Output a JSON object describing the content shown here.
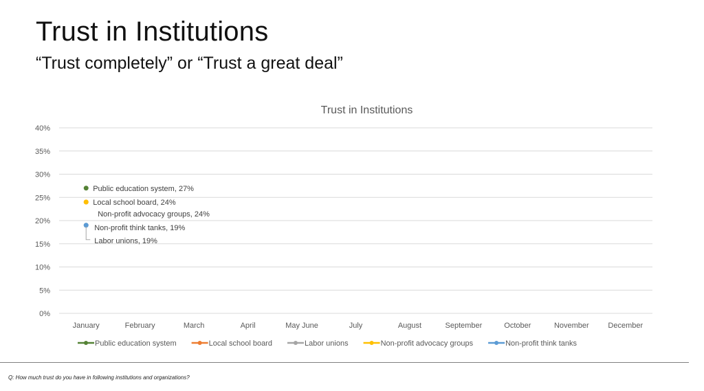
{
  "slide": {
    "title": "Trust in Institutions",
    "subtitle": "“Trust completely” or “Trust a great deal”",
    "footnote": "Q: How much trust do you have in following institutions and organizations?"
  },
  "chart_data": {
    "type": "line",
    "title": "Trust in Institutions",
    "xlabel": "",
    "ylabel": "",
    "categories": [
      "January",
      "February",
      "March",
      "April",
      "May June",
      "July",
      "August",
      "September",
      "October",
      "November",
      "December"
    ],
    "ylim": [
      0,
      0.4
    ],
    "yticks": [
      "0%",
      "5%",
      "10%",
      "15%",
      "20%",
      "25%",
      "30%",
      "35%",
      "40%"
    ],
    "grid": true,
    "legend_position": "bottom",
    "series": [
      {
        "name": "Public education system",
        "color": "#548235",
        "values": [
          0.27,
          null,
          null,
          null,
          null,
          null,
          null,
          null,
          null,
          null,
          null
        ],
        "label": "Public education system, 27%"
      },
      {
        "name": "Local school board",
        "color": "#ed7d31",
        "values": [
          0.24,
          null,
          null,
          null,
          null,
          null,
          null,
          null,
          null,
          null,
          null
        ],
        "label": "Local school board, 24%"
      },
      {
        "name": "Labor unions",
        "color": "#a5a5a5",
        "values": [
          0.19,
          null,
          null,
          null,
          null,
          null,
          null,
          null,
          null,
          null,
          null
        ],
        "label": "Labor unions, 19%"
      },
      {
        "name": "Non-profit advocacy groups",
        "color": "#ffc000",
        "values": [
          0.24,
          null,
          null,
          null,
          null,
          null,
          null,
          null,
          null,
          null,
          null
        ],
        "label": "Non-profit advocacy groups, 24%"
      },
      {
        "name": "Non-profit think tanks",
        "color": "#5b9bd5",
        "values": [
          0.19,
          null,
          null,
          null,
          null,
          null,
          null,
          null,
          null,
          null,
          null
        ],
        "label": "Non-profit think tanks, 19%"
      }
    ]
  }
}
